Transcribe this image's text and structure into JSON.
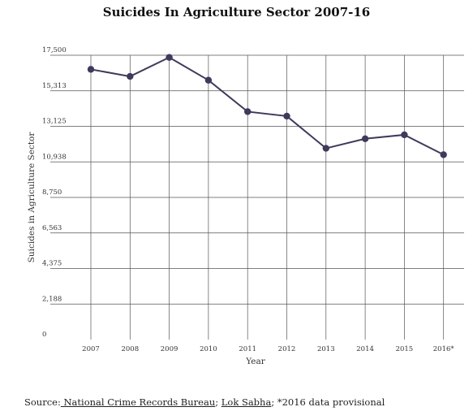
{
  "chart_data": {
    "type": "line",
    "title": "Suicides In Agriculture Sector 2007-16",
    "xlabel": "Year",
    "ylabel": "Suicides in Agriculture Sector",
    "categories": [
      "2007",
      "2008",
      "2009",
      "2010",
      "2011",
      "2012",
      "2013",
      "2014",
      "2015",
      "2016*"
    ],
    "values": [
      16632,
      16196,
      17368,
      15964,
      14027,
      13754,
      11772,
      12360,
      12602,
      11379
    ],
    "y_ticks": [
      "0",
      "2,188",
      "4,375",
      "6,563",
      "8,750",
      "10,938",
      "13,125",
      "15,313",
      "17,500"
    ],
    "ylim": [
      0,
      17500
    ],
    "grid": true,
    "line_color": "#3f3a5c",
    "marker_color": "#3f3a5c"
  },
  "footer": {
    "prefix": "Source:",
    "link1": " National Crime Records Bureau",
    "sep": "; ",
    "link2": "Lok Sabha",
    "suffix": "; *2016 data provisional"
  }
}
